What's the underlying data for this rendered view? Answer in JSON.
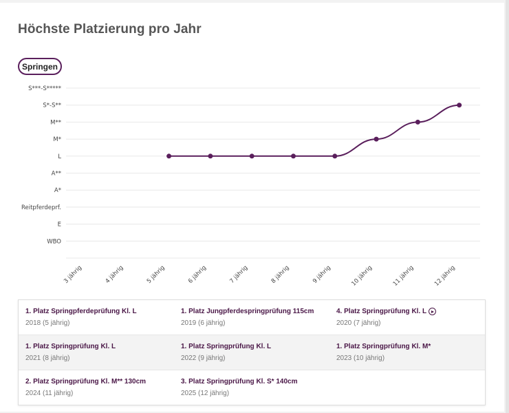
{
  "title": "Höchste Platzierung pro Jahr",
  "filter_button": "Springen",
  "colors": {
    "accent": "#5a1f5c",
    "grid": "#e8e8e8"
  },
  "chart_data": {
    "type": "line",
    "y_levels": [
      "WBO",
      "E",
      "Reitpferdeprf.",
      "A*",
      "A**",
      "L",
      "M*",
      "M**",
      "S*-S**",
      "S***-S*****"
    ],
    "x": [
      "3 jährig",
      "4 jährig",
      "5 jährig",
      "6 jährig",
      "7 jährig",
      "8 jährig",
      "9 jährig",
      "10 jährig",
      "11 jährig",
      "12 jährig"
    ],
    "series": [
      {
        "values": [
          null,
          null,
          "L",
          "L",
          "L",
          "L",
          "L",
          "M*",
          "M**",
          "S*-S**"
        ]
      }
    ],
    "grid": true,
    "legend": "none"
  },
  "results": [
    [
      {
        "title": "1. Platz Springpferdeprüfung Kl. L",
        "sub": "2018 (5 jährig)",
        "video": false
      },
      {
        "title": "1. Platz Jungpferdespringprüfung 115cm",
        "sub": "2019 (6 jährig)",
        "video": false
      },
      {
        "title": "4. Platz Springprüfung Kl. L",
        "sub": "2020 (7 jährig)",
        "video": true
      }
    ],
    [
      {
        "title": "1. Platz Springprüfung Kl. L",
        "sub": "2021 (8 jährig)",
        "video": false
      },
      {
        "title": "1. Platz Springprüfung Kl. L",
        "sub": "2022 (9 jährig)",
        "video": false
      },
      {
        "title": "1. Platz Springprüfung Kl. M*",
        "sub": "2023 (10 jährig)",
        "video": false
      }
    ],
    [
      {
        "title": "2. Platz Springprüfung Kl. M** 130cm",
        "sub": "2024 (11 jährig)",
        "video": false
      },
      {
        "title": "3. Platz Springprüfung Kl. S* 140cm",
        "sub": "2025 (12 jährig)",
        "video": false
      }
    ]
  ]
}
